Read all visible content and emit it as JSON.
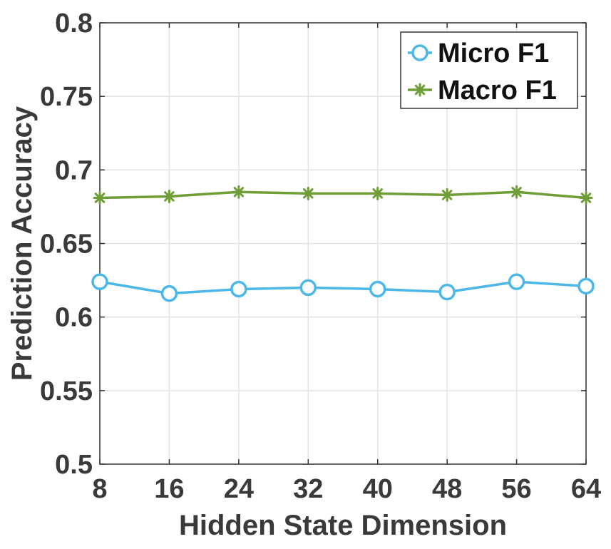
{
  "chart_data": {
    "type": "line",
    "title": "",
    "xlabel": "Hidden State Dimension",
    "ylabel": "Prediction Accuracy",
    "x": [
      8,
      16,
      24,
      32,
      40,
      48,
      56,
      64
    ],
    "xticks": [
      "8",
      "16",
      "24",
      "32",
      "40",
      "48",
      "56",
      "64"
    ],
    "yticks": [
      "0.5",
      "0.55",
      "0.6",
      "0.65",
      "0.7",
      "0.75",
      "0.8"
    ],
    "xlim": [
      8,
      64
    ],
    "ylim": [
      0.5,
      0.8
    ],
    "grid": true,
    "legend_position": "top-right",
    "series": [
      {
        "name": "Micro F1",
        "color": "#4db8e8",
        "marker": "circle",
        "values": [
          0.624,
          0.616,
          0.619,
          0.62,
          0.619,
          0.617,
          0.624,
          0.621
        ]
      },
      {
        "name": "Macro F1",
        "color": "#6e9e35",
        "marker": "star",
        "values": [
          0.681,
          0.682,
          0.685,
          0.684,
          0.684,
          0.683,
          0.685,
          0.681
        ]
      }
    ]
  }
}
